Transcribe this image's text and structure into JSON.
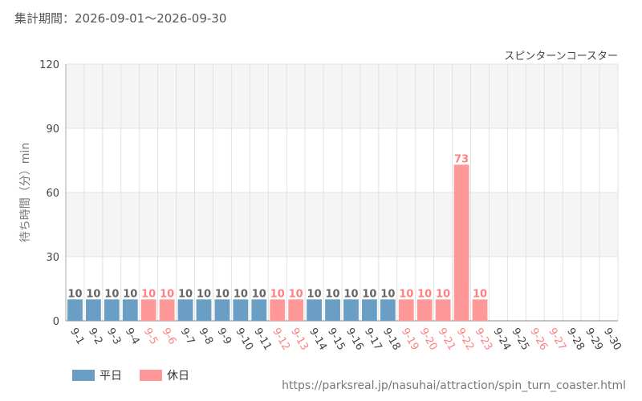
{
  "header": {
    "label": "集計期間：",
    "range": "2026-09-01～2026-09-30"
  },
  "source_url": "https://parksreal.jp/nasuhai/attraction/spin_turn_coaster.html",
  "colors": {
    "weekday": "#6a9ec5",
    "holiday": "#ff9999",
    "weekday_text": "#666666",
    "holiday_text": "#ff8080",
    "band": "#f5f5f5",
    "grid": "#e2e2e2"
  },
  "chart_data": {
    "type": "bar",
    "title": "スピンターンコースター",
    "ylabel": "待ち時間（分）min",
    "ylim": [
      0,
      120
    ],
    "yticks": [
      0,
      30,
      60,
      90,
      120
    ],
    "categories": [
      "9-1",
      "9-2",
      "9-3",
      "9-4",
      "9-5",
      "9-6",
      "9-7",
      "9-8",
      "9-9",
      "9-10",
      "9-11",
      "9-12",
      "9-13",
      "9-14",
      "9-15",
      "9-16",
      "9-17",
      "9-18",
      "9-19",
      "9-20",
      "9-21",
      "9-22",
      "9-23",
      "9-24",
      "9-25",
      "9-26",
      "9-27",
      "9-28",
      "9-29",
      "9-30"
    ],
    "values": [
      10,
      10,
      10,
      10,
      10,
      10,
      10,
      10,
      10,
      10,
      10,
      10,
      10,
      10,
      10,
      10,
      10,
      10,
      10,
      10,
      10,
      73,
      10,
      null,
      null,
      null,
      null,
      null,
      null,
      null
    ],
    "day_type": [
      "weekday",
      "weekday",
      "weekday",
      "weekday",
      "holiday",
      "holiday",
      "weekday",
      "weekday",
      "weekday",
      "weekday",
      "weekday",
      "holiday",
      "holiday",
      "weekday",
      "weekday",
      "weekday",
      "weekday",
      "weekday",
      "holiday",
      "holiday",
      "holiday",
      "holiday",
      "holiday",
      "weekday",
      "weekday",
      "holiday",
      "holiday",
      "weekday",
      "weekday",
      "weekday"
    ],
    "legend": [
      {
        "key": "weekday",
        "label": "平日"
      },
      {
        "key": "holiday",
        "label": "休日"
      }
    ],
    "legend_position": "bottom-left",
    "grid": true
  }
}
